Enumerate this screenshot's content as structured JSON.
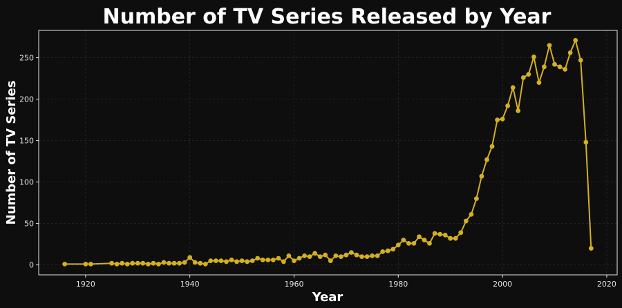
{
  "chart_data": {
    "type": "line",
    "title": "Number of TV Series Released by Year",
    "xlabel": "Year",
    "ylabel": "Number of TV Series",
    "xlim": [
      1911,
      2022
    ],
    "ylim": [
      -12,
      283
    ],
    "xticks": [
      1920,
      1940,
      1960,
      1980,
      2000,
      2020
    ],
    "yticks": [
      0,
      50,
      100,
      150,
      200,
      250
    ],
    "grid": true,
    "legend": "none",
    "colors": {
      "line": "#d4b021",
      "background": "#0e0e0e",
      "grid": "#2a2a2a",
      "frame": "#e6e6e6"
    },
    "series": [
      {
        "x": [
          1916,
          1920,
          1921,
          1925,
          1926,
          1927,
          1928,
          1929,
          1930,
          1931,
          1932,
          1933,
          1934,
          1935,
          1936,
          1937,
          1938,
          1939,
          1940,
          1941,
          1942,
          1943,
          1944,
          1945,
          1946,
          1947,
          1948,
          1949,
          1950,
          1951,
          1952,
          1953,
          1954,
          1955,
          1956,
          1957,
          1958,
          1959,
          1960,
          1961,
          1962,
          1963,
          1964,
          1965,
          1966,
          1967,
          1968,
          1969,
          1970,
          1971,
          1972,
          1973,
          1974,
          1975,
          1976,
          1977,
          1978,
          1979,
          1980,
          1981,
          1982,
          1983,
          1984,
          1985,
          1986,
          1987,
          1988,
          1989,
          1990,
          1991,
          1992,
          1993,
          1994,
          1995,
          1996,
          1997,
          1998,
          1999,
          2000,
          2001,
          2002,
          2003,
          2004,
          2005,
          2006,
          2007,
          2008,
          2009,
          2010,
          2011,
          2012,
          2013,
          2014,
          2015,
          2016,
          2017
        ],
        "y": [
          1,
          1,
          1,
          2,
          1,
          2,
          1,
          2,
          2,
          2,
          1,
          2,
          1,
          3,
          2,
          2,
          2,
          3,
          9,
          3,
          2,
          1,
          5,
          5,
          5,
          4,
          6,
          4,
          5,
          4,
          5,
          8,
          6,
          6,
          6,
          8,
          4,
          11,
          5,
          8,
          11,
          10,
          14,
          10,
          12,
          5,
          11,
          10,
          12,
          15,
          12,
          10,
          10,
          11,
          11,
          16,
          17,
          19,
          24,
          30,
          26,
          26,
          34,
          30,
          26,
          38,
          37,
          36,
          32,
          32,
          39,
          53,
          61,
          80,
          107,
          127,
          143,
          175,
          176,
          192,
          214,
          186,
          226,
          230,
          251,
          220,
          239,
          265,
          242,
          239,
          236,
          256,
          271,
          247,
          148,
          20
        ]
      }
    ]
  }
}
